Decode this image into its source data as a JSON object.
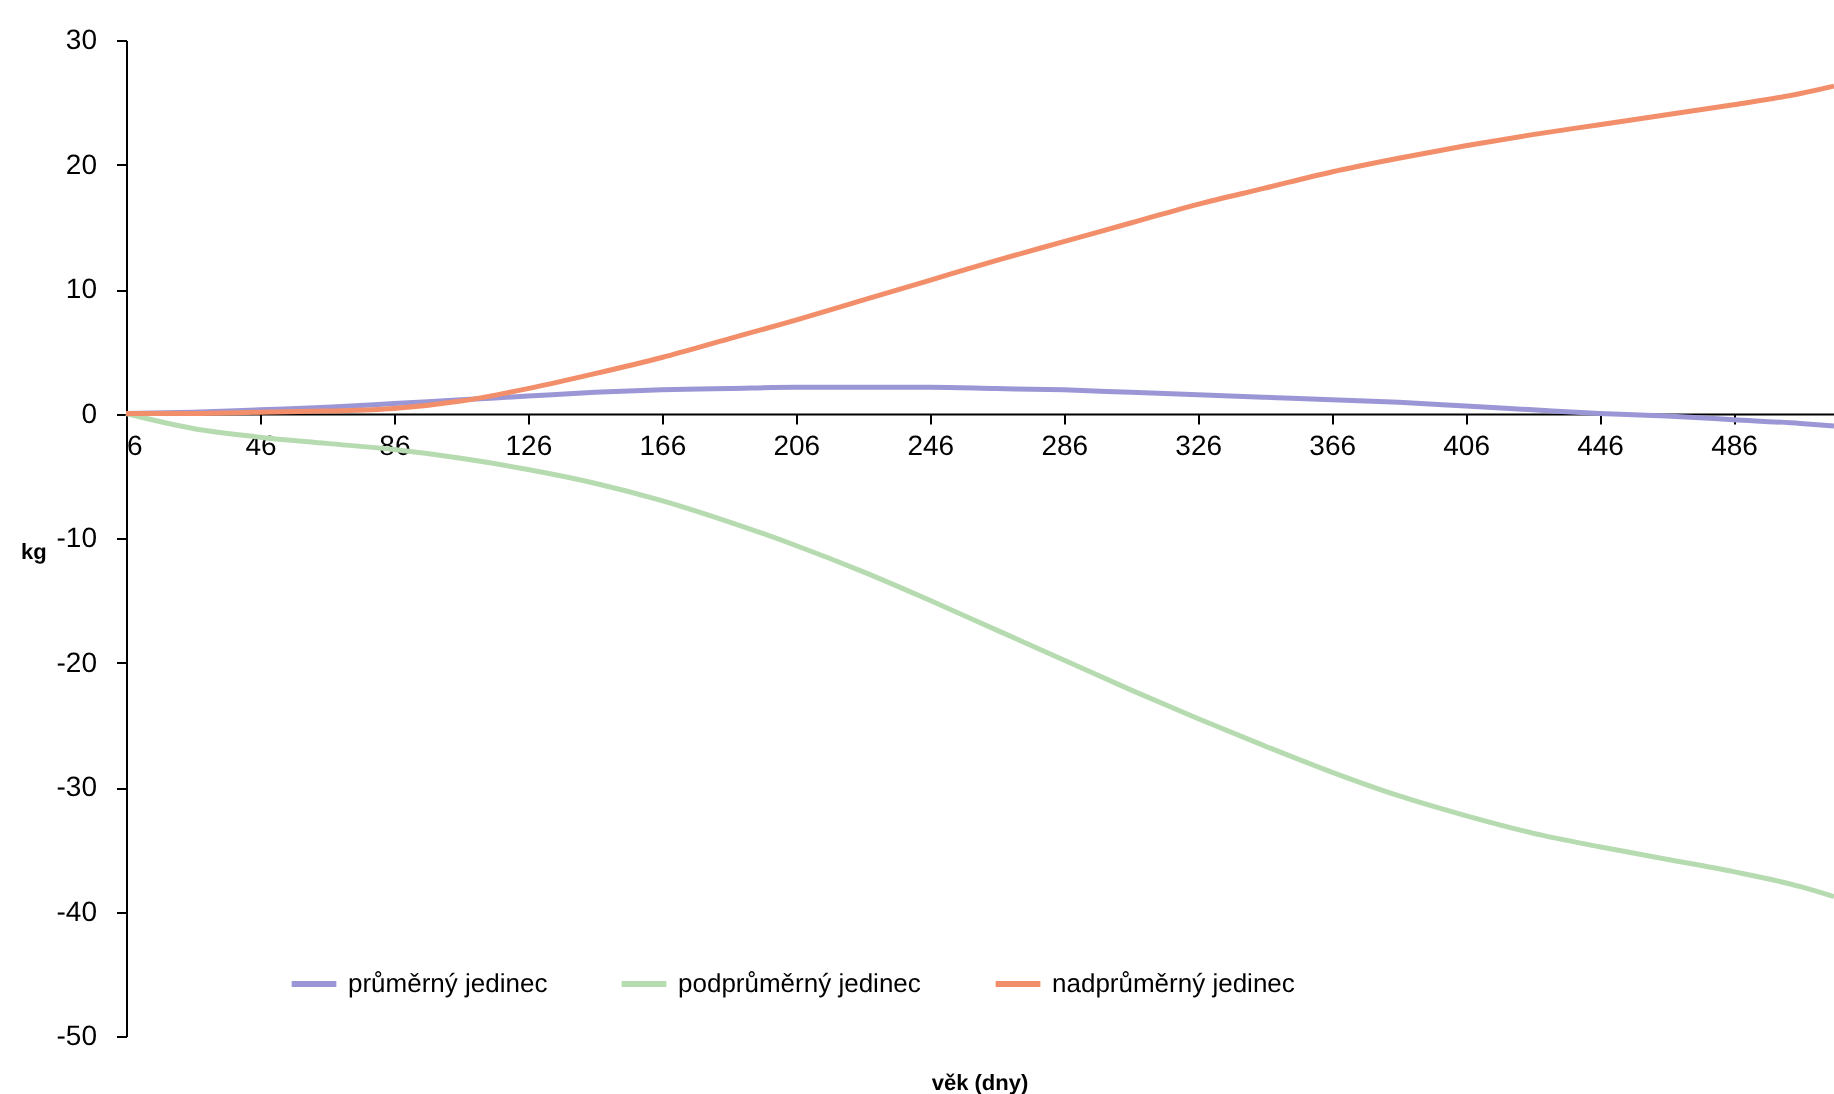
{
  "chart_data": {
    "type": "line",
    "xlabel": "věk (dny)",
    "ylabel": "kg",
    "x": [
      6,
      26,
      46,
      66,
      86,
      106,
      126,
      146,
      166,
      186,
      206,
      226,
      246,
      266,
      286,
      306,
      326,
      346,
      366,
      386,
      406,
      426,
      446,
      466,
      486,
      506,
      516
    ],
    "series": [
      {
        "name": "průměrný jedinec",
        "color": "#9b97d6",
        "values": [
          0,
          0.1,
          0.3,
          0.5,
          0.8,
          1.1,
          1.4,
          1.7,
          1.9,
          2.0,
          2.1,
          2.1,
          2.1,
          2.0,
          1.9,
          1.7,
          1.5,
          1.3,
          1.1,
          0.9,
          0.6,
          0.3,
          0,
          -0.2,
          -0.5,
          -0.8,
          -1.0
        ]
      },
      {
        "name": "podprůměrný jedinec",
        "color": "#b7dbb0",
        "values": [
          0,
          -1.2,
          -1.9,
          -2.4,
          -2.9,
          -3.6,
          -4.5,
          -5.6,
          -7.0,
          -8.7,
          -10.6,
          -12.7,
          -15.0,
          -17.4,
          -19.8,
          -22.2,
          -24.5,
          -26.7,
          -28.8,
          -30.7,
          -32.3,
          -33.7,
          -34.8,
          -35.8,
          -36.8,
          -38.0,
          -38.8
        ]
      },
      {
        "name": "nadprůměrný jedinec",
        "color": "#f28e6a",
        "values": [
          0,
          0,
          0.1,
          0.2,
          0.4,
          1.0,
          2.0,
          3.2,
          4.5,
          6.0,
          7.5,
          9.1,
          10.7,
          12.3,
          13.8,
          15.3,
          16.8,
          18.1,
          19.4,
          20.5,
          21.5,
          22.4,
          23.2,
          24.0,
          24.8,
          25.7,
          26.3
        ]
      }
    ],
    "xlim": [
      6,
      516
    ],
    "xticks": [
      6,
      46,
      86,
      126,
      166,
      206,
      246,
      286,
      326,
      366,
      406,
      446,
      486
    ],
    "ylim": [
      -50,
      30
    ],
    "yticks": [
      -50,
      -40,
      -30,
      -20,
      -10,
      0,
      10,
      20,
      30
    ],
    "grid": false,
    "legend": "bottom",
    "line_style": "solid"
  }
}
